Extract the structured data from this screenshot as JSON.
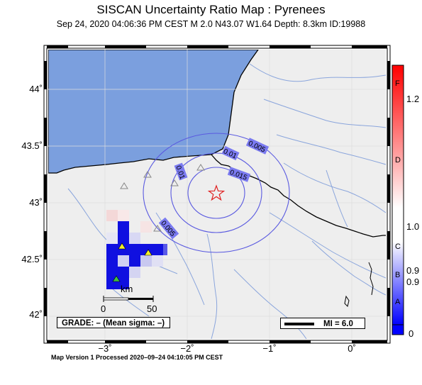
{
  "header": {
    "title": "SISCAN Uncertainty Ratio Map : Pyrenees",
    "subtitle": "Sep 24, 2020 04:06:36 PM CEST   M 2.0   N43.07 W1.64   Depth: 8.3km   ID:19988"
  },
  "axes": {
    "lat_ticks": [
      "44˚",
      "43.5˚",
      "43˚",
      "42.5˚",
      "42˚"
    ],
    "lon_ticks": [
      "−3˚",
      "−2˚",
      "−1˚",
      "0˚"
    ]
  },
  "contour_labels": [
    "0.005",
    "0.01",
    "0.015",
    "0.01",
    "0.005"
  ],
  "scale_bar": {
    "unit": "km",
    "label_start": "0",
    "label_end": "50"
  },
  "grade_box": {
    "text": "GRADE: – (Mean sigma: –)"
  },
  "mi_legend": {
    "text": "MI = 6.0"
  },
  "colorbar": {
    "values": [
      "1.2",
      "1.0",
      "0.9",
      "0.9",
      "0"
    ],
    "grades": [
      "F",
      "D",
      "C",
      "B",
      "A"
    ]
  },
  "footer": {
    "text": "Map Version 1 Processed 2020–09–24 04:10:05 PM CEST"
  },
  "colors": {
    "sea": "#7b9fde",
    "land": "#eeeeee",
    "rivers": "#8aa5dc",
    "contours": "#5a5ae0",
    "epicenter": "#e02020",
    "station_yellow": "#f2ef2a",
    "station_green": "#40c040",
    "uncertainty_blue": "#1010e0"
  }
}
